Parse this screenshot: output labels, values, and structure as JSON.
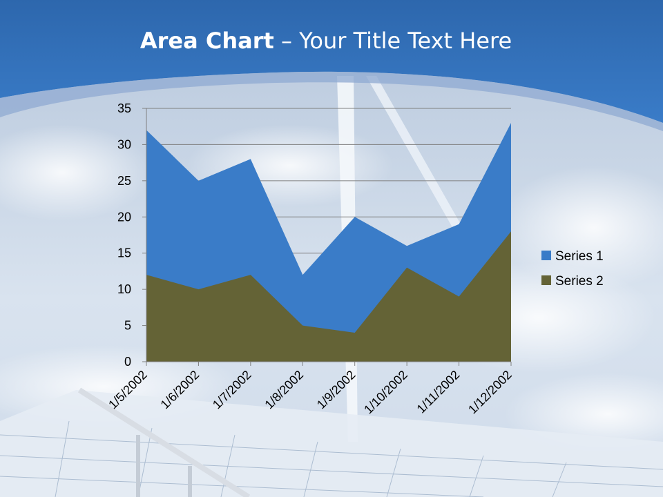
{
  "slide": {
    "title_bold": "Area Chart",
    "title_rest": " – Your Title Text Here"
  },
  "colors": {
    "banner": "#2f6db1",
    "series1": "#3a7cc8",
    "series2": "#646336"
  },
  "chart_data": {
    "type": "area",
    "title": "",
    "xlabel": "",
    "ylabel": "",
    "categories": [
      "1/5/2002",
      "1/6/2002",
      "1/7/2002",
      "1/8/2002",
      "1/9/2002",
      "1/10/2002",
      "1/11/2002",
      "1/12/2002"
    ],
    "series": [
      {
        "name": "Series 1",
        "values": [
          32,
          25,
          28,
          12,
          20,
          16,
          19,
          33
        ],
        "color": "#3a7cc8"
      },
      {
        "name": "Series 2",
        "values": [
          12,
          10,
          12,
          5,
          4,
          13,
          9,
          18
        ],
        "color": "#646336"
      }
    ],
    "ylim": [
      0,
      35
    ],
    "yticks": [
      0,
      5,
      10,
      15,
      20,
      25,
      30,
      35
    ],
    "grid": true,
    "legend_position": "right"
  }
}
